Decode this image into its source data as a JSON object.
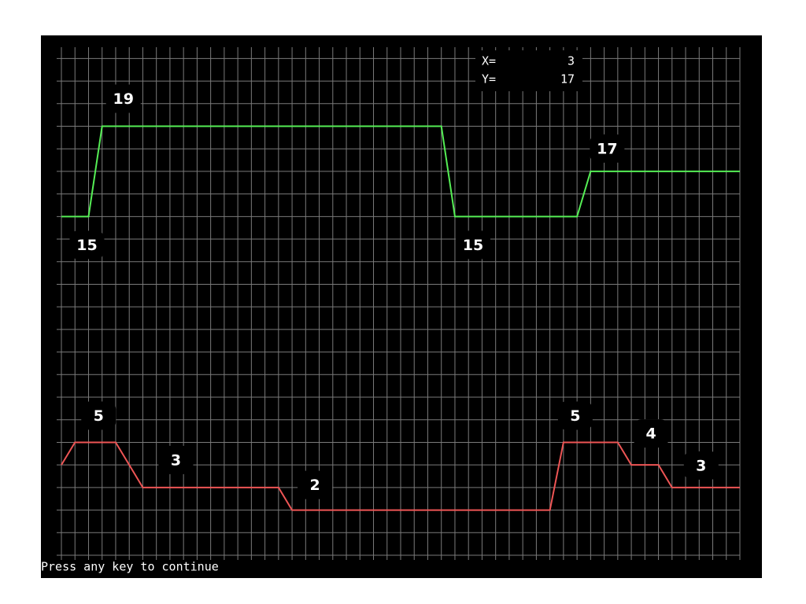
{
  "chart_data": {
    "type": "line",
    "readout": {
      "x_label": "X=",
      "x": 3,
      "y_label": "Y=",
      "y": 17
    },
    "footer": "Press any key to continue",
    "x": [
      0,
      1,
      2,
      3,
      4,
      5,
      6,
      7,
      8,
      9,
      10,
      11,
      12,
      13,
      14,
      15,
      16,
      17,
      18,
      19,
      20,
      21,
      22,
      23,
      24,
      25,
      26,
      27,
      28,
      29,
      30,
      31,
      32,
      33,
      34,
      35,
      36,
      37,
      38,
      39,
      40,
      41,
      42,
      43,
      44,
      45,
      46,
      47,
      48,
      49,
      50
    ],
    "series": [
      {
        "color": "#55ee55",
        "values": [
          15,
          15,
          15,
          19,
          19,
          19,
          19,
          19,
          19,
          19,
          19,
          19,
          19,
          19,
          19,
          19,
          19,
          19,
          19,
          19,
          19,
          19,
          19,
          19,
          19,
          19,
          19,
          19,
          19,
          15,
          15,
          15,
          15,
          15,
          15,
          15,
          15,
          15,
          15,
          17,
          17,
          17,
          17,
          17,
          17,
          17,
          17,
          17,
          17,
          17,
          17
        ]
      },
      {
        "color": "#ee5555",
        "values": [
          4,
          5,
          5,
          5,
          5,
          4,
          3,
          3,
          3,
          3,
          3,
          3,
          3,
          3,
          3,
          3,
          3,
          2,
          2,
          2,
          2,
          2,
          2,
          2,
          2,
          2,
          2,
          2,
          2,
          2,
          2,
          2,
          2,
          2,
          2,
          2,
          2,
          5,
          5,
          5,
          5,
          5,
          4,
          4,
          4,
          3,
          3,
          3,
          3,
          3,
          3
        ]
      }
    ],
    "annotations": [
      {
        "series": 0,
        "index": 3,
        "value": 19
      },
      {
        "series": 0,
        "index": 2,
        "value": 15
      },
      {
        "series": 0,
        "index": 29,
        "value": 15
      },
      {
        "series": 0,
        "index": 39,
        "value": 17
      },
      {
        "series": 1,
        "index": 1,
        "value": 5
      },
      {
        "series": 1,
        "index": 6,
        "value": 3
      },
      {
        "series": 1,
        "index": 17,
        "value": 2
      },
      {
        "series": 1,
        "index": 37,
        "value": 5
      },
      {
        "series": 1,
        "index": 42,
        "value": 4
      },
      {
        "series": 1,
        "index": 45,
        "value": 3
      }
    ],
    "xlim": [
      0,
      50
    ],
    "ylim": [
      0,
      22.5
    ],
    "xticks": [
      0,
      1,
      2,
      3,
      4,
      5,
      6,
      7,
      8,
      9,
      10,
      11,
      12,
      13,
      14,
      15,
      16,
      17,
      18,
      19,
      20,
      21,
      22,
      23,
      24,
      25,
      26,
      27,
      28,
      29,
      30,
      31,
      32,
      33,
      34,
      35,
      36,
      37,
      38,
      39,
      40,
      41,
      42,
      43,
      44,
      45,
      46,
      47,
      48,
      49,
      50
    ],
    "yticks": [
      0,
      1,
      2,
      3,
      4,
      5,
      6,
      7,
      8,
      9,
      10,
      11,
      12,
      13,
      14,
      15,
      16,
      17,
      18,
      19,
      20,
      21,
      22
    ],
    "grid": true
  }
}
